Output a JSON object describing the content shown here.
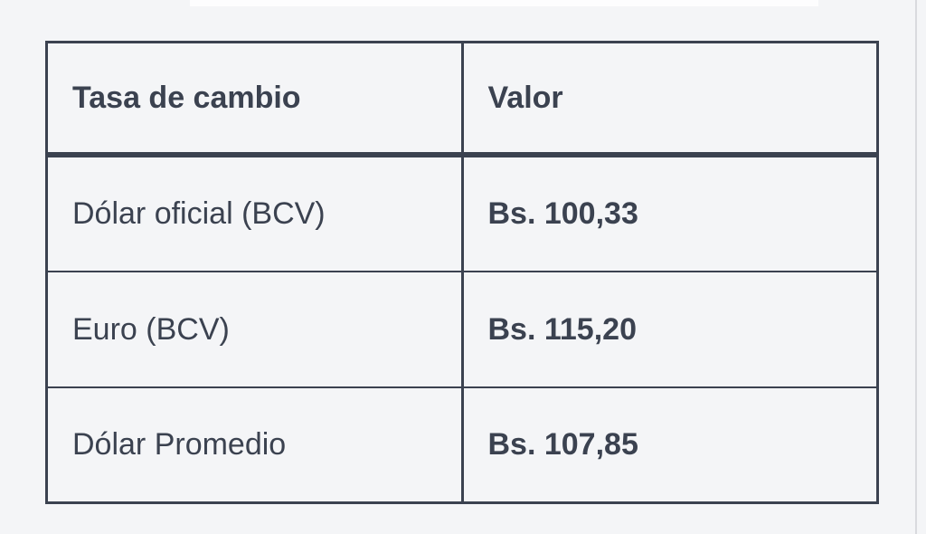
{
  "page": {
    "background_color": "#f4f5f7",
    "top_strip_color": "#fdfdfe",
    "scroll_line_color": "#d9dade"
  },
  "table": {
    "border_color": "#3b4250",
    "text_color": "#3b4250",
    "cell_background": "#f4f5f7",
    "headers": [
      "Tasa de cambio",
      "Valor"
    ],
    "rows": [
      {
        "label": "Dólar oficial (BCV)",
        "value": "Bs. 100,33"
      },
      {
        "label": "Euro (BCV)",
        "value": "Bs. 115,20"
      },
      {
        "label": "Dólar Promedio",
        "value": "Bs. 107,85"
      }
    ]
  }
}
